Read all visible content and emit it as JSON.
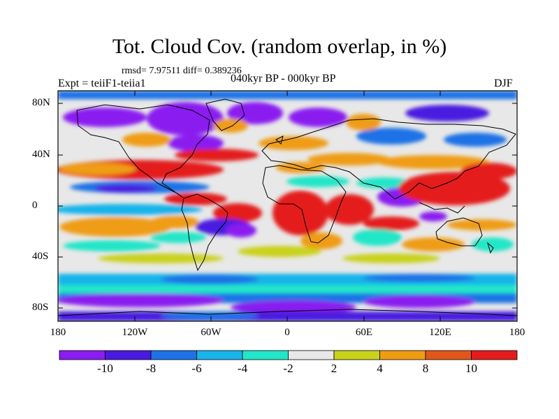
{
  "header": {
    "title": "Tot. Cloud Cov. (random overlap, in %)",
    "stats": "rmsd= 7.97511  diff= 0.389236",
    "experiment": "Expt = teiiF1-teiia1",
    "period": "040kyr BP - 000kyr BP",
    "season": "DJF"
  },
  "axes": {
    "lat_labels": [
      "80N",
      "40N",
      "0",
      "40S",
      "80S"
    ],
    "lon_labels": [
      "180",
      "120W",
      "60W",
      "0",
      "60E",
      "120E",
      "180"
    ]
  },
  "colorbar": {
    "tick_labels": [
      "-10",
      "-8",
      "-6",
      "-4",
      "-2",
      "2",
      "4",
      "8",
      "10"
    ],
    "colors": [
      "#8a1df0",
      "#4a1ae0",
      "#1f72e6",
      "#18b4ea",
      "#22e6c8",
      "#e8e8e8",
      "#c9d21a",
      "#ef9c12",
      "#e2561a",
      "#e41c1c"
    ]
  }
}
